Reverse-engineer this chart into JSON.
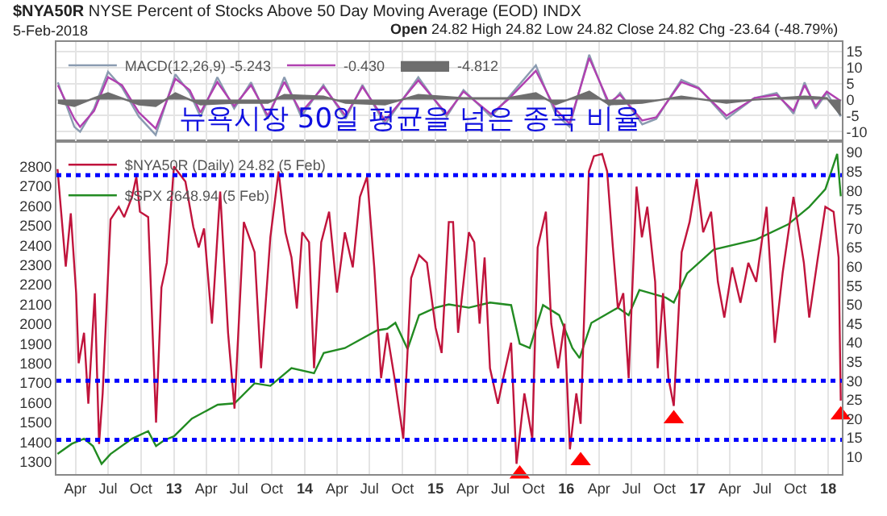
{
  "chart_data": [
    {
      "type": "line",
      "title": "$NYA50R NYSE Percent of Stocks Above 50 Day Moving Average (EOD) INDX",
      "subtitle": "5-Feb-2018",
      "annotations": [
        "Open 24.82 High 24.82 Low 24.82 Close 24.82 Chg -23.64 (-48.79%)",
        "뉴욕시장 50일 평균을 넘은 종목 비율"
      ],
      "series": [
        {
          "name": "MACD(12,26,9) -5.243",
          "color": "#8a9bb0",
          "x": [
            "2012-02-12",
            "2012-03-29",
            "2012-04-14",
            "2012-05-23",
            "2012-07-01",
            "2012-08-09",
            "2012-09-25",
            "2012-11-11",
            "2013-01-05",
            "2013-02-14",
            "2013-03-16",
            "2013-05-02",
            "2013-06-18",
            "2013-08-04",
            "2013-09-20",
            "2013-11-05",
            "2013-12-22",
            "2014-02-22",
            "2014-04-25",
            "2014-06-11",
            "2014-08-13",
            "2014-11-14",
            "2015-02-01",
            "2015-03-20",
            "2015-06-05",
            "2015-07-22",
            "2015-10-08",
            "2015-12-02",
            "2016-01-10",
            "2016-03-05",
            "2016-04-29",
            "2016-05-30",
            "2016-07-31",
            "2016-09-08",
            "2016-11-17",
            "2017-01-04",
            "2017-03-23",
            "2017-06-09",
            "2017-08-10",
            "2017-09-26",
            "2017-10-27",
            "2017-11-27",
            "2017-12-28",
            "2018-02-05"
          ],
          "values": [
            5.4,
            -8.5,
            -10,
            -2.8,
            8.7,
            3.8,
            -5.3,
            -11,
            7.9,
            2.1,
            -5.3,
            7,
            -2.8,
            5.4,
            -6,
            7,
            -5.3,
            4.6,
            -6,
            4.6,
            -7.7,
            7,
            -5.3,
            3,
            -5.3,
            0.5,
            10.7,
            -4.4,
            -8.5,
            14,
            -2,
            2.1,
            -7.7,
            -6,
            6.2,
            3.8,
            -6,
            0.5,
            2.1,
            -4.4,
            5.4,
            -2.8,
            2.1,
            -5.2
          ]
        },
        {
          "name": "-0.430",
          "color": "#b040b0",
          "x": [
            "2012-02-12",
            "2012-03-29",
            "2012-04-14",
            "2012-05-23",
            "2012-07-01",
            "2012-08-09",
            "2012-09-25",
            "2012-11-11",
            "2013-01-05",
            "2013-02-14",
            "2013-03-16",
            "2013-05-02",
            "2013-06-18",
            "2013-08-04",
            "2013-09-20",
            "2013-11-05",
            "2013-12-22",
            "2014-02-22",
            "2014-04-25",
            "2014-06-11",
            "2014-08-13",
            "2014-11-14",
            "2015-02-01",
            "2015-03-20",
            "2015-06-05",
            "2015-07-22",
            "2015-10-08",
            "2015-12-02",
            "2016-01-10",
            "2016-03-05",
            "2016-04-29",
            "2016-05-30",
            "2016-07-31",
            "2016-09-08",
            "2016-11-17",
            "2017-01-04",
            "2017-03-23",
            "2017-06-09",
            "2017-08-10",
            "2017-09-26",
            "2017-10-27",
            "2017-11-27",
            "2017-12-28",
            "2018-02-05"
          ],
          "values": [
            4.5,
            -6,
            -8.5,
            -3.5,
            7,
            4.5,
            -4,
            -9,
            6.5,
            3,
            -4,
            5.5,
            -2,
            4.5,
            -5,
            5.5,
            -4,
            4,
            -5,
            4,
            -6.5,
            6,
            -4.5,
            2.5,
            -4.5,
            0,
            9,
            -3,
            -7.5,
            13,
            -1,
            1.5,
            -6.5,
            -5.5,
            5.5,
            3.5,
            -5,
            0.5,
            1.5,
            -3.5,
            4.5,
            -2,
            2.5,
            -0.4
          ]
        },
        {
          "name": "-4.812",
          "color": "#6e6e6e",
          "type": "area",
          "x": [
            "2012-02-12",
            "2012-03-29",
            "2012-05-23",
            "2012-07-01",
            "2012-09-25",
            "2012-11-11",
            "2013-01-05",
            "2013-03-16",
            "2013-06-18",
            "2013-09-20",
            "2013-11-05",
            "2014-02-22",
            "2014-04-25",
            "2014-08-13",
            "2014-11-14",
            "2015-03-20",
            "2015-07-22",
            "2015-10-08",
            "2015-12-02",
            "2016-03-05",
            "2016-04-29",
            "2016-07-31",
            "2016-11-17",
            "2017-03-23",
            "2017-06-09",
            "2017-10-27",
            "2017-12-28",
            "2018-02-05"
          ],
          "values": [
            -1,
            -2,
            0.5,
            2,
            -1.5,
            -2,
            2,
            -1.5,
            -1,
            -1,
            1.5,
            1,
            -1,
            -1.5,
            1.5,
            0.5,
            0.5,
            2,
            -1.5,
            2.5,
            -1.5,
            -1,
            1,
            -1,
            0,
            1,
            0.5,
            -4.8
          ]
        }
      ],
      "xlim": [
        "2012-02-08",
        "2018-02-08"
      ],
      "ylim": [
        -13,
        18
      ],
      "yticks": [
        -10,
        -5,
        0,
        5,
        10,
        15
      ],
      "tick_labels": "y",
      "grid": true,
      "legend": "top left",
      "line_style": "solid",
      "marker": "none"
    },
    {
      "type": "line",
      "series": [
        {
          "name": "$NYA50R (Daily) 24.82 (5 Feb)",
          "color": "#c0143c",
          "axis": "y2",
          "x": [
            "2012-02-11",
            "2012-03-05",
            "2012-03-19",
            "2012-04-03",
            "2012-04-10",
            "2012-04-25",
            "2012-05-07",
            "2012-05-25",
            "2012-06-06",
            "2012-06-16",
            "2012-07-08",
            "2012-07-31",
            "2012-08-15",
            "2012-09-06",
            "2012-09-18",
            "2012-09-28",
            "2012-10-21",
            "2012-11-12",
            "2012-11-27",
            "2012-12-12",
            "2013-01-01",
            "2013-01-11",
            "2013-02-02",
            "2013-02-24",
            "2013-03-11",
            "2013-03-26",
            "2013-04-17",
            "2013-05-10",
            "2013-06-01",
            "2013-06-19",
            "2013-07-15",
            "2013-08-14",
            "2013-09-01",
            "2013-09-27",
            "2013-10-20",
            "2013-11-08",
            "2013-11-25",
            "2013-12-10",
            "2013-12-25",
            "2014-01-13",
            "2014-01-27",
            "2014-02-16",
            "2014-03-10",
            "2014-04-01",
            "2014-04-23",
            "2014-05-15",
            "2014-06-04",
            "2014-06-24",
            "2014-07-14",
            "2014-08-02",
            "2014-08-19",
            "2014-09-11",
            "2014-10-03",
            "2014-10-25",
            "2014-11-16",
            "2014-12-08",
            "2015-01-01",
            "2015-01-18",
            "2015-02-07",
            "2015-02-19",
            "2015-03-05",
            "2015-04-04",
            "2015-04-19",
            "2015-05-04",
            "2015-05-18",
            "2015-06-02",
            "2015-06-24",
            "2015-07-09",
            "2015-07-31",
            "2015-08-15",
            "2015-09-06",
            "2015-09-28",
            "2015-10-13",
            "2015-11-05",
            "2015-11-20",
            "2015-12-09",
            "2015-12-27",
            "2016-01-11",
            "2016-01-29",
            "2016-02-10",
            "2016-03-04",
            "2016-03-18",
            "2016-04-10",
            "2016-04-24",
            "2016-05-10",
            "2016-05-24",
            "2016-06-08",
            "2016-06-23",
            "2016-07-15",
            "2016-07-30",
            "2016-08-14",
            "2016-09-05",
            "2016-09-12",
            "2016-09-27",
            "2016-10-12",
            "2016-10-27",
            "2016-11-18",
            "2016-12-10",
            "2016-12-30",
            "2017-01-17",
            "2017-02-08",
            "2017-02-27",
            "2017-03-17",
            "2017-04-08",
            "2017-05-01",
            "2017-05-23",
            "2017-06-14",
            "2017-07-13",
            "2017-08-05",
            "2017-08-27",
            "2017-09-26",
            "2017-10-25",
            "2017-11-09",
            "2017-12-01",
            "2017-12-24",
            "2018-01-16",
            "2018-01-30",
            "2018-02-05"
          ],
          "values": [
            85.6,
            60,
            74,
            53,
            34.6,
            42.6,
            24,
            53,
            13.4,
            26.7,
            72.4,
            75.7,
            73,
            78.3,
            83.6,
            74.4,
            73,
            19,
            54.5,
            61,
            86.3,
            85,
            82.3,
            70.4,
            65,
            70,
            45,
            79.7,
            42.6,
            22.7,
            71.7,
            63.8,
            33.3,
            67.7,
            85,
            69,
            62.4,
            49,
            69,
            66.4,
            33.3,
            66.4,
            74.4,
            53.2,
            69,
            59.8,
            78.3,
            83.6,
            59.8,
            30.7,
            42.6,
            29.3,
            14.8,
            57,
            63,
            61,
            44,
            37.3,
            71.7,
            71.7,
            42.6,
            69,
            66.4,
            45,
            62.4,
            33.3,
            24,
            30.7,
            40,
            8.2,
            26.7,
            14.8,
            65,
            74.4,
            45,
            33.3,
            45,
            12,
            26.7,
            18.7,
            85,
            89,
            89.6,
            85,
            65,
            49,
            53,
            30.7,
            81,
            67.7,
            75.7,
            56,
            33.3,
            53,
            30.7,
            23.4,
            63.8,
            71.7,
            83,
            69,
            74.4,
            56,
            46.6,
            59.8,
            50.5,
            61,
            56,
            75.7,
            40,
            58.5,
            78.3,
            61,
            46.6,
            61,
            75.7,
            74.4,
            62.4,
            24.8
          ]
        },
        {
          "name": "$SPX 2648.94 (5 Feb)",
          "color": "#228b22",
          "axis": "y",
          "x": [
            "2012-02-11",
            "2012-03-22",
            "2012-04-25",
            "2012-05-20",
            "2012-06-13",
            "2012-07-08",
            "2012-09-06",
            "2012-10-21",
            "2012-11-12",
            "2012-12-05",
            "2013-01-01",
            "2013-02-20",
            "2013-05-03",
            "2013-06-19",
            "2013-08-14",
            "2013-09-27",
            "2013-11-25",
            "2014-01-27",
            "2014-02-23",
            "2014-04-23",
            "2014-07-22",
            "2014-08-19",
            "2014-09-11",
            "2014-10-15",
            "2014-11-16",
            "2015-01-01",
            "2015-02-07",
            "2015-04-04",
            "2015-06-02",
            "2015-07-31",
            "2015-08-24",
            "2015-09-21",
            "2015-10-28",
            "2015-12-12",
            "2016-01-18",
            "2016-02-07",
            "2016-03-11",
            "2016-05-24",
            "2016-06-23",
            "2016-07-23",
            "2016-10-05",
            "2016-10-27",
            "2016-12-03",
            "2017-02-15",
            "2017-06-14",
            "2017-09-11",
            "2017-11-09",
            "2017-12-24",
            "2018-01-26",
            "2018-02-05"
          ],
          "values": [
            1340,
            1392,
            1418,
            1380,
            1290,
            1340,
            1418,
            1456,
            1380,
            1410,
            1430,
            1520,
            1590,
            1597,
            1699,
            1686,
            1776,
            1750,
            1853,
            1878,
            1968,
            1976,
            2006,
            1873,
            2045,
            2083,
            2100,
            2083,
            2109,
            2096,
            1900,
            1878,
            2096,
            2045,
            1878,
            1827,
            2006,
            2083,
            2045,
            2173,
            2134,
            2109,
            2257,
            2378,
            2429,
            2506,
            2595,
            2685,
            2864,
            2649
          ]
        },
        {
          "type": "scatter",
          "color": "#ff0000",
          "axis": "y2",
          "marker": "triangle",
          "x": [
            "2015-08-24",
            "2016-02-10",
            "2016-10-27",
            "2018-02-05"
          ],
          "values": [
            5.5,
            9,
            20,
            21
          ]
        }
      ],
      "xlim": [
        "2012-02-08",
        "2018-02-08"
      ],
      "xticks": [
        {
          "value": "2012-04-01",
          "label": "Apr"
        },
        {
          "value": "2012-07-01",
          "label": "Jul"
        },
        {
          "value": "2012-10-01",
          "label": "Oct"
        },
        {
          "value": "2013-01-01",
          "label": "13"
        },
        {
          "value": "2013-04-01",
          "label": "Apr"
        },
        {
          "value": "2013-07-01",
          "label": "Jul"
        },
        {
          "value": "2013-10-01",
          "label": "Oct"
        },
        {
          "value": "2014-01-01",
          "label": "14"
        },
        {
          "value": "2014-04-01",
          "label": "Apr"
        },
        {
          "value": "2014-07-01",
          "label": "Jul"
        },
        {
          "value": "2014-10-01",
          "label": "Oct"
        },
        {
          "value": "2015-01-01",
          "label": "15"
        },
        {
          "value": "2015-04-01",
          "label": "Apr"
        },
        {
          "value": "2015-07-01",
          "label": "Jul"
        },
        {
          "value": "2015-10-01",
          "label": "Oct"
        },
        {
          "value": "2016-01-01",
          "label": "16"
        },
        {
          "value": "2016-04-01",
          "label": "Apr"
        },
        {
          "value": "2016-07-01",
          "label": "Jul"
        },
        {
          "value": "2016-10-01",
          "label": "Oct"
        },
        {
          "value": "2017-01-01",
          "label": "17"
        },
        {
          "value": "2017-04-01",
          "label": "Apr"
        },
        {
          "value": "2017-07-01",
          "label": "Jul"
        },
        {
          "value": "2017-10-01",
          "label": "Oct"
        },
        {
          "value": "2018-01-01",
          "label": "18"
        }
      ],
      "ylim": [
        1238,
        2928
      ],
      "yticks": [
        1300,
        1400,
        1500,
        1600,
        1700,
        1800,
        1900,
        2000,
        2100,
        2200,
        2300,
        2400,
        2500,
        2600,
        2700,
        2800
      ],
      "y2lim": [
        5.5,
        92.9
      ],
      "y2ticks": [
        10,
        15,
        20,
        25,
        30,
        35,
        40,
        45,
        50,
        55,
        60,
        65,
        70,
        75,
        80,
        85,
        90
      ],
      "ref_lines": [
        {
          "axis": "y2",
          "value": 84,
          "color": "#0000ff",
          "line_style": "dotted"
        },
        {
          "axis": "y2",
          "value": 30,
          "color": "#0000ff",
          "line_style": "dotted"
        },
        {
          "axis": "y2",
          "value": 14.5,
          "color": "#0000ff",
          "line_style": "dotted"
        }
      ],
      "grid": "x",
      "legend": "top left",
      "line_style": "solid",
      "marker": "none"
    }
  ]
}
